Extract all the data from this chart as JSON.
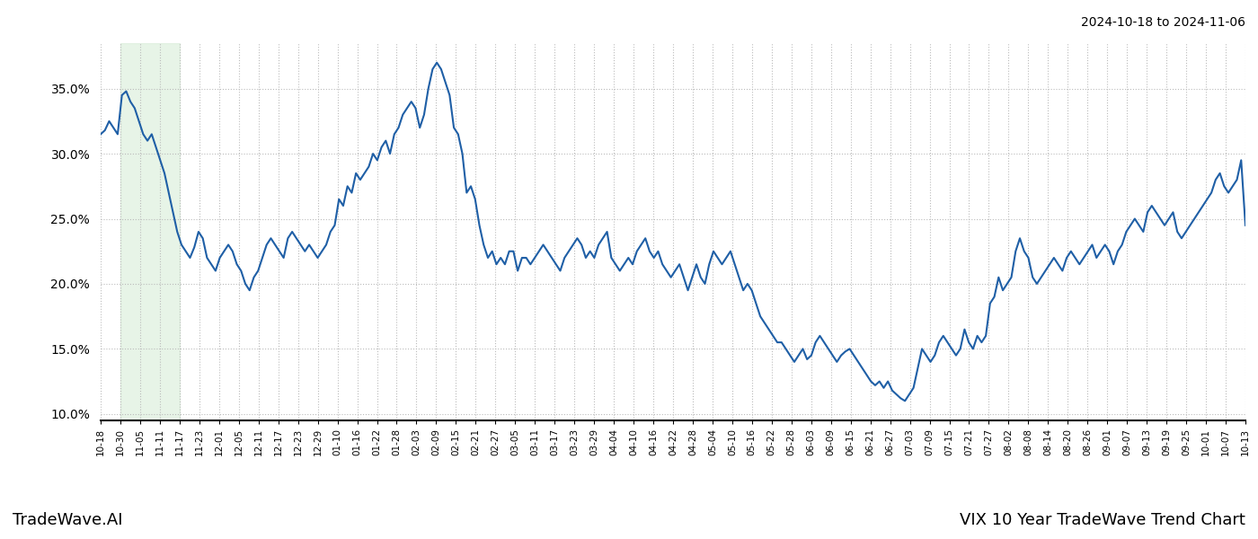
{
  "title_top_right": "2024-10-18 to 2024-11-06",
  "title_bottom_left": "TradeWave.AI",
  "title_bottom_right": "VIX 10 Year TradeWave Trend Chart",
  "line_color": "#1f5fa6",
  "line_width": 1.5,
  "shade_color": "#d8edd8",
  "shade_alpha": 0.6,
  "background_color": "#ffffff",
  "grid_color": "#bbbbbb",
  "ylim": [
    9.5,
    38.5
  ],
  "yticks": [
    10.0,
    15.0,
    20.0,
    25.0,
    30.0,
    35.0
  ],
  "xlabel_fontsize": 7.5,
  "shade_xstart": 1,
  "shade_xend": 4,
  "x_labels": [
    "10-18",
    "10-30",
    "11-05",
    "11-11",
    "11-17",
    "11-23",
    "12-01",
    "12-05",
    "12-11",
    "12-17",
    "12-23",
    "12-29",
    "01-10",
    "01-16",
    "01-22",
    "01-28",
    "02-03",
    "02-09",
    "02-15",
    "02-21",
    "02-27",
    "03-05",
    "03-11",
    "03-17",
    "03-23",
    "03-29",
    "04-04",
    "04-10",
    "04-16",
    "04-22",
    "04-28",
    "05-04",
    "05-10",
    "05-16",
    "05-22",
    "05-28",
    "06-03",
    "06-09",
    "06-15",
    "06-21",
    "06-27",
    "07-03",
    "07-09",
    "07-15",
    "07-21",
    "07-27",
    "08-02",
    "08-08",
    "08-14",
    "08-20",
    "08-26",
    "09-01",
    "09-07",
    "09-13",
    "09-19",
    "09-25",
    "10-01",
    "10-07",
    "10-13"
  ],
  "y_values": [
    31.5,
    31.8,
    32.5,
    32.0,
    31.5,
    34.5,
    34.8,
    34.0,
    33.5,
    32.5,
    31.5,
    31.0,
    31.5,
    30.5,
    29.5,
    28.5,
    27.0,
    25.5,
    24.0,
    23.0,
    22.5,
    22.0,
    22.8,
    24.0,
    23.5,
    22.0,
    21.5,
    21.0,
    22.0,
    22.5,
    23.0,
    22.5,
    21.5,
    21.0,
    20.0,
    19.5,
    20.5,
    21.0,
    22.0,
    23.0,
    23.5,
    23.0,
    22.5,
    22.0,
    23.5,
    24.0,
    23.5,
    23.0,
    22.5,
    23.0,
    22.5,
    22.0,
    22.5,
    23.0,
    24.0,
    24.5,
    26.5,
    26.0,
    27.5,
    27.0,
    28.5,
    28.0,
    28.5,
    29.0,
    30.0,
    29.5,
    30.5,
    31.0,
    30.0,
    31.5,
    32.0,
    33.0,
    33.5,
    34.0,
    33.5,
    32.0,
    33.0,
    35.0,
    36.5,
    37.0,
    36.5,
    35.5,
    34.5,
    32.0,
    31.5,
    30.0,
    27.0,
    27.5,
    26.5,
    24.5,
    23.0,
    22.0,
    22.5,
    21.5,
    22.0,
    21.5,
    22.5,
    22.5,
    21.0,
    22.0,
    22.0,
    21.5,
    22.0,
    22.5,
    23.0,
    22.5,
    22.0,
    21.5,
    21.0,
    22.0,
    22.5,
    23.0,
    23.5,
    23.0,
    22.0,
    22.5,
    22.0,
    23.0,
    23.5,
    24.0,
    22.0,
    21.5,
    21.0,
    21.5,
    22.0,
    21.5,
    22.5,
    23.0,
    23.5,
    22.5,
    22.0,
    22.5,
    21.5,
    21.0,
    20.5,
    21.0,
    21.5,
    20.5,
    19.5,
    20.5,
    21.5,
    20.5,
    20.0,
    21.5,
    22.5,
    22.0,
    21.5,
    22.0,
    22.5,
    21.5,
    20.5,
    19.5,
    20.0,
    19.5,
    18.5,
    17.5,
    17.0,
    16.5,
    16.0,
    15.5,
    15.5,
    15.0,
    14.5,
    14.0,
    14.5,
    15.0,
    14.2,
    14.5,
    15.5,
    16.0,
    15.5,
    15.0,
    14.5,
    14.0,
    14.5,
    14.8,
    15.0,
    14.5,
    14.0,
    13.5,
    13.0,
    12.5,
    12.2,
    12.5,
    12.0,
    12.5,
    11.8,
    11.5,
    11.2,
    11.0,
    11.5,
    12.0,
    13.5,
    15.0,
    14.5,
    14.0,
    14.5,
    15.5,
    16.0,
    15.5,
    15.0,
    14.5,
    15.0,
    16.5,
    15.5,
    15.0,
    16.0,
    15.5,
    16.0,
    18.5,
    19.0,
    20.5,
    19.5,
    20.0,
    20.5,
    22.5,
    23.5,
    22.5,
    22.0,
    20.5,
    20.0,
    20.5,
    21.0,
    21.5,
    22.0,
    21.5,
    21.0,
    22.0,
    22.5,
    22.0,
    21.5,
    22.0,
    22.5,
    23.0,
    22.0,
    22.5,
    23.0,
    22.5,
    21.5,
    22.5,
    23.0,
    24.0,
    24.5,
    25.0,
    24.5,
    24.0,
    25.5,
    26.0,
    25.5,
    25.0,
    24.5,
    25.0,
    25.5,
    24.0,
    23.5,
    24.0,
    24.5,
    25.0,
    25.5,
    26.0,
    26.5,
    27.0,
    28.0,
    28.5,
    27.5,
    27.0,
    27.5,
    28.0,
    29.5,
    24.5
  ]
}
